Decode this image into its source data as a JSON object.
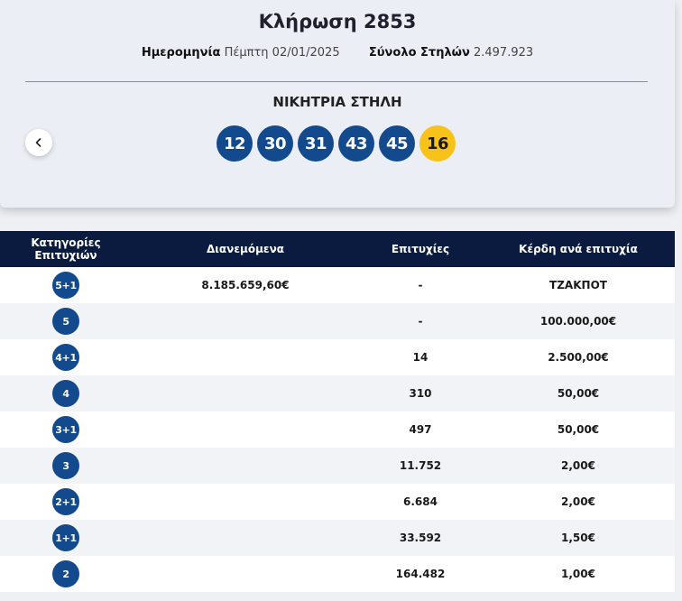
{
  "draw": {
    "title": "Κλήρωση 2853",
    "date_label": "Ημερομηνία",
    "date_value": "Πέμπτη 02/01/2025",
    "columns_label": "Σύνολο Στηλών",
    "columns_value": "2.497.923",
    "winning_title": "ΝΙΚΗΤΡΙΑ ΣΤΗΛΗ",
    "numbers": [
      "12",
      "30",
      "31",
      "43",
      "45"
    ],
    "bonus": "16"
  },
  "colors": {
    "ball": "#134a8e",
    "bonus_ball": "#f7c31a",
    "table_header": "#0b1a3f"
  },
  "table": {
    "headers": [
      "Κατηγορίες Επιτυχιών",
      "Διανεμόμενα",
      "Επιτυχίες",
      "Κέρδη ανά επιτυχία"
    ],
    "rows": [
      {
        "category": "5+1",
        "distributed": "8.185.659,60€",
        "winners": "-",
        "prize": "ΤΖΑΚΠΟΤ"
      },
      {
        "category": "5",
        "distributed": "",
        "winners": "-",
        "prize": "100.000,00€"
      },
      {
        "category": "4+1",
        "distributed": "",
        "winners": "14",
        "prize": "2.500,00€"
      },
      {
        "category": "4",
        "distributed": "",
        "winners": "310",
        "prize": "50,00€"
      },
      {
        "category": "3+1",
        "distributed": "",
        "winners": "497",
        "prize": "50,00€"
      },
      {
        "category": "3",
        "distributed": "",
        "winners": "11.752",
        "prize": "2,00€"
      },
      {
        "category": "2+1",
        "distributed": "",
        "winners": "6.684",
        "prize": "2,00€"
      },
      {
        "category": "1+1",
        "distributed": "",
        "winners": "33.592",
        "prize": "1,50€"
      },
      {
        "category": "2",
        "distributed": "",
        "winners": "164.482",
        "prize": "1,00€"
      }
    ]
  },
  "icons": {
    "prev": "chevron-left-icon"
  }
}
